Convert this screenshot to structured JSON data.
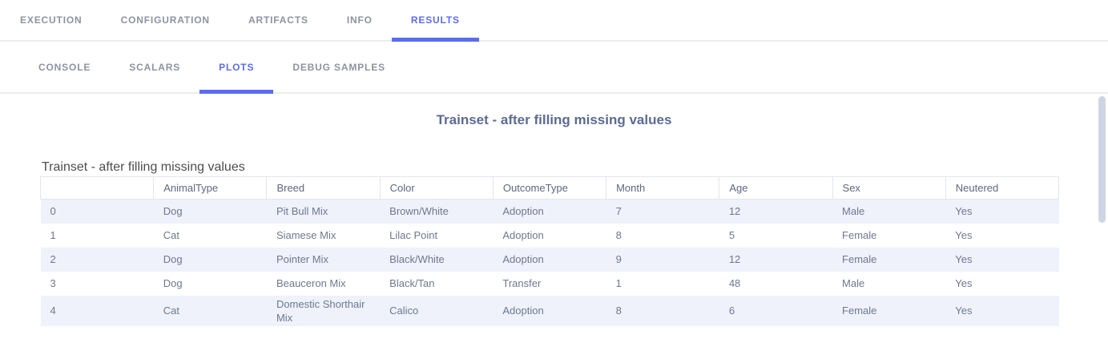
{
  "top_nav": {
    "tabs": [
      {
        "label": "EXECUTION",
        "active": false
      },
      {
        "label": "CONFIGURATION",
        "active": false
      },
      {
        "label": "ARTIFACTS",
        "active": false
      },
      {
        "label": "INFO",
        "active": false
      },
      {
        "label": "RESULTS",
        "active": true
      }
    ]
  },
  "sub_nav": {
    "tabs": [
      {
        "label": "CONSOLE",
        "active": false
      },
      {
        "label": "SCALARS",
        "active": false
      },
      {
        "label": "PLOTS",
        "active": true
      },
      {
        "label": "DEBUG SAMPLES",
        "active": false
      }
    ]
  },
  "plot": {
    "title": "Trainset - after filling missing values",
    "table_title": "Trainset - after filling missing values",
    "columns": [
      "",
      "AnimalType",
      "Breed",
      "Color",
      "OutcomeType",
      "Month",
      "Age",
      "Sex",
      "Neutered"
    ],
    "rows": [
      [
        "0",
        "Dog",
        "Pit Bull Mix",
        "Brown/White",
        "Adoption",
        "7",
        "12",
        "Male",
        "Yes"
      ],
      [
        "1",
        "Cat",
        "Siamese Mix",
        "Lilac Point",
        "Adoption",
        "8",
        "5",
        "Female",
        "Yes"
      ],
      [
        "2",
        "Dog",
        "Pointer Mix",
        "Black/White",
        "Adoption",
        "9",
        "12",
        "Female",
        "Yes"
      ],
      [
        "3",
        "Dog",
        "Beauceron Mix",
        "Black/Tan",
        "Transfer",
        "1",
        "48",
        "Male",
        "Yes"
      ],
      [
        "4",
        "Cat",
        "Domestic Shorthair Mix",
        "Calico",
        "Adoption",
        "8",
        "6",
        "Female",
        "Yes"
      ]
    ]
  },
  "colors": {
    "accent": "#5b6cf2",
    "inactive_tab": "#8d93a1",
    "plot_title": "#5c6b96",
    "table_title": "#4d4d4d",
    "row_alt_background": "#eff2fb",
    "cell_text": "#6e7890",
    "header_border": "#e3e6ee",
    "scrollbar_thumb": "#cfd5e4"
  }
}
